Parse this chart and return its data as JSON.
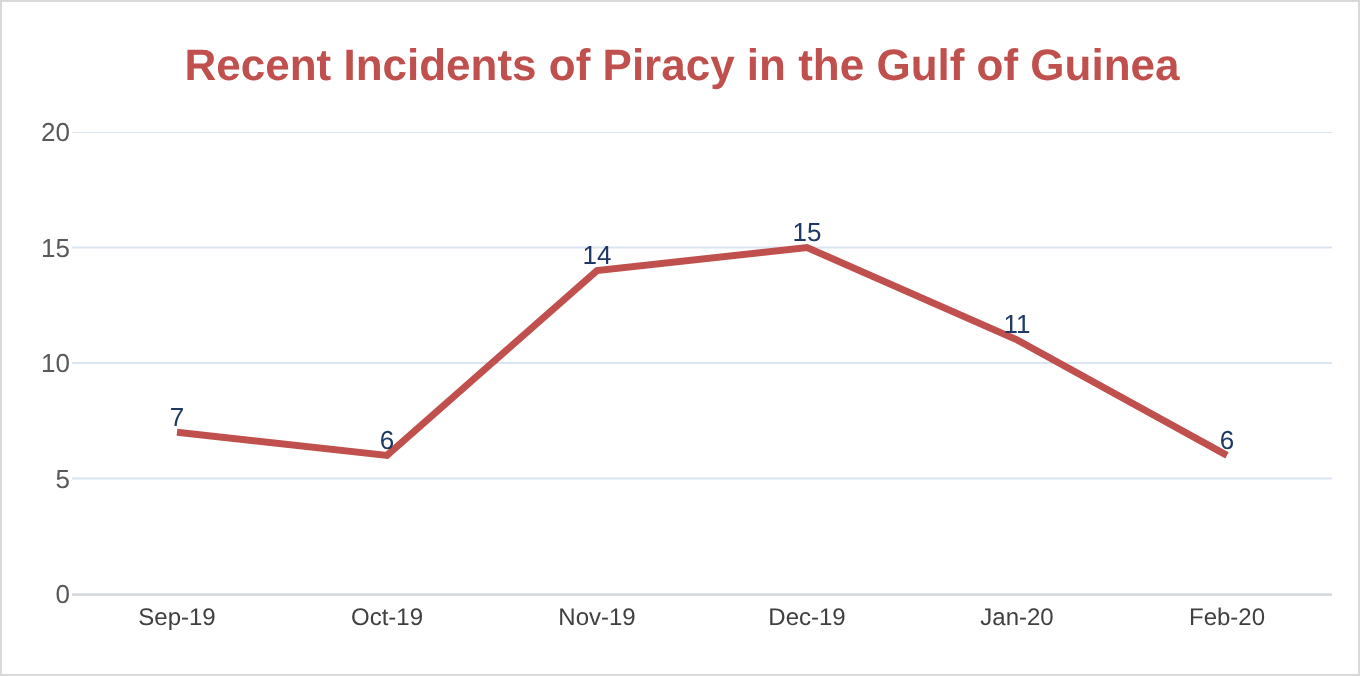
{
  "chart_data": {
    "type": "line",
    "title": "Recent Incidents of Piracy in the Gulf of Guinea",
    "categories": [
      "Sep-19",
      "Oct-19",
      "Nov-19",
      "Dec-19",
      "Jan-20",
      "Feb-20"
    ],
    "series": [
      {
        "color": "#c0504d",
        "values": [
          7,
          6,
          14,
          15,
          11,
          6
        ]
      }
    ],
    "ylim": [
      0,
      20
    ],
    "yticks": [
      0,
      5,
      10,
      15,
      20
    ],
    "grid": "y",
    "data_labels": true
  }
}
